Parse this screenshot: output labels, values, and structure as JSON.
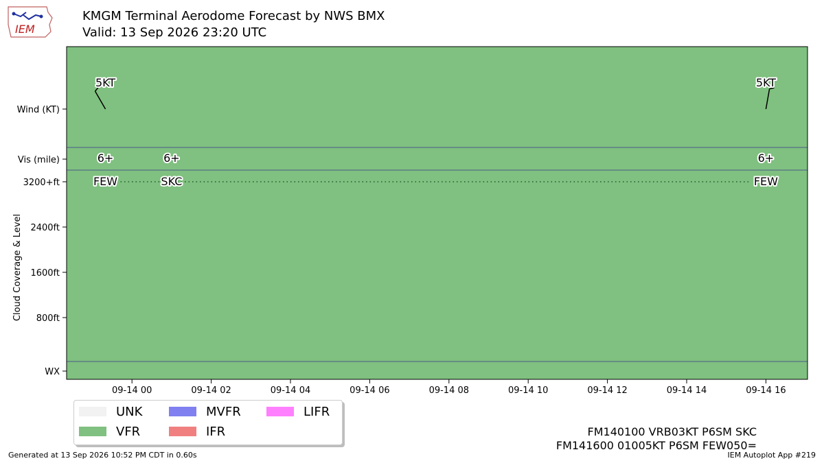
{
  "header": {
    "logo_text": "IEM",
    "title": "KMGM Terminal Aerodome Forecast by NWS BMX",
    "subtitle": "Valid: 13 Sep 2026 23:20 UTC"
  },
  "chart_data": {
    "type": "timeline",
    "background_category": "VFR",
    "x_ticks": [
      "09-14 00",
      "09-14 02",
      "09-14 04",
      "09-14 06",
      "09-14 08",
      "09-14 10",
      "09-14 12",
      "09-14 14",
      "09-14 16"
    ],
    "x_tick_hours": [
      24,
      26,
      28,
      30,
      32,
      34,
      36,
      38,
      40
    ],
    "xlim_hours": [
      22.35,
      41.05
    ],
    "y_rows": {
      "wind": "Wind (KT)",
      "vis": "Vis (mile)",
      "wx": "WX"
    },
    "cloud_ylabel": "Cloud Coverage & Level",
    "cloud_ticks": [
      "3200+ft",
      "2400ft",
      "1600ft",
      "800ft"
    ],
    "cloud_tick_values": [
      3200,
      2400,
      1600,
      800
    ],
    "cloud_ylim": [
      0,
      3200
    ],
    "forecasts": [
      {
        "hour": 23.33,
        "wind_label": "5KT",
        "wind_dir_deg": 330,
        "vis": "6+",
        "cloud": "FEW"
      },
      {
        "hour": 25.0,
        "wind_label": "",
        "wind_dir_deg": null,
        "vis": "6+",
        "cloud": "SKC"
      },
      {
        "hour": 40.0,
        "wind_label": "5KT",
        "wind_dir_deg": 10,
        "vis": "6+",
        "cloud": "FEW"
      }
    ],
    "cloud_line_level": 3200,
    "category_colors": {
      "UNK": "#f2f2f2",
      "VFR": "#80c080",
      "MVFR": "#8080f0",
      "IFR": "#f08080",
      "LIFR": "#ff80ff"
    }
  },
  "legend": {
    "items": [
      {
        "label": "UNK",
        "color": "#f2f2f2"
      },
      {
        "label": "MVFR",
        "color": "#8080f0"
      },
      {
        "label": "LIFR",
        "color": "#ff80ff"
      },
      {
        "label": "VFR",
        "color": "#80c080"
      },
      {
        "label": "IFR",
        "color": "#f08080"
      }
    ]
  },
  "raw_taf": {
    "line1": "FM140100 VRB03KT P6SM SKC",
    "line2": "FM141600 01005KT P6SM FEW050="
  },
  "footer": {
    "generated": "Generated at 13 Sep 2026 10:52 PM CDT in 0.60s",
    "app": "IEM Autoplot App #219"
  }
}
